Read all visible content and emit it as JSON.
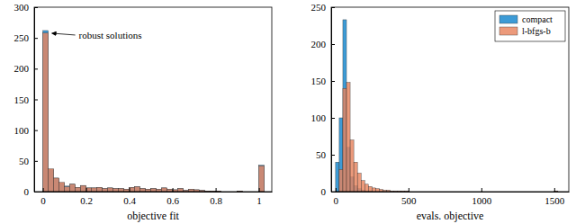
{
  "chart_data": [
    {
      "type": "histogram",
      "x_label": "objective fit",
      "annotation": "robust solutions",
      "bins": [
        0,
        0.025,
        0.05,
        0.075,
        0.1,
        0.125,
        0.15,
        0.175,
        0.2,
        0.225,
        0.25,
        0.275,
        0.3,
        0.325,
        0.35,
        0.375,
        0.4,
        0.425,
        0.45,
        0.475,
        0.5,
        0.525,
        0.55,
        0.575,
        0.6,
        0.625,
        0.65,
        0.675,
        0.7,
        0.725,
        0.75,
        0.775,
        0.8,
        0.825,
        0.85,
        0.875,
        0.9,
        0.925,
        0.95,
        0.975,
        1,
        1.025
      ],
      "series": [
        {
          "color": "#3d9bd6",
          "values": [
            262,
            36,
            22,
            14,
            9,
            12,
            7,
            10,
            6,
            6,
            7,
            5,
            6,
            5,
            5,
            4,
            7,
            8,
            5,
            4,
            5,
            4,
            6,
            4,
            3,
            5,
            2,
            4,
            3,
            2,
            1,
            1,
            1,
            0,
            0,
            0,
            1,
            0,
            0,
            0,
            43
          ]
        },
        {
          "color": "#e8845e",
          "values": [
            258,
            37,
            22,
            15,
            8,
            12,
            7,
            10,
            6,
            6,
            7,
            5,
            6,
            5,
            5,
            4,
            7,
            8,
            5,
            4,
            5,
            4,
            6,
            4,
            3,
            5,
            2,
            4,
            3,
            2,
            1,
            1,
            1,
            0,
            0,
            0,
            1,
            0,
            0,
            0,
            42
          ]
        }
      ],
      "xlim": [
        -0.04,
        1.06
      ],
      "xticks": [
        0,
        0.2,
        0.4,
        0.6,
        0.8,
        1
      ],
      "ylim": [
        0,
        300
      ],
      "yticks": [
        0,
        50,
        100,
        150,
        200,
        250,
        300
      ]
    },
    {
      "type": "histogram",
      "x_label": "evals. objective",
      "legend": "upper right",
      "bins": [
        0,
        25,
        50,
        75,
        100,
        125,
        150,
        175,
        200,
        225,
        250,
        275,
        300,
        325,
        350,
        375,
        400,
        425,
        450,
        475,
        500,
        525,
        550,
        575,
        600,
        625,
        650,
        675,
        700,
        725,
        750,
        775,
        800,
        825,
        850,
        875,
        900,
        925,
        950,
        975,
        1000,
        1025,
        1050,
        1075,
        1100,
        1125,
        1150,
        1175,
        1200,
        1225,
        1250,
        1275,
        1300,
        1325,
        1350,
        1375,
        1400,
        1425,
        1450,
        1475,
        1500,
        1525,
        1550,
        1575,
        1600
      ],
      "series": [
        {
          "name": "compact",
          "color": "#3d9bd6",
          "values": [
            40,
            100,
            233,
            60,
            20,
            8,
            4,
            2,
            1,
            1,
            0,
            0,
            0,
            0,
            0,
            0,
            0,
            0,
            0,
            0,
            0,
            0,
            0,
            0,
            0,
            0,
            0,
            0,
            0,
            0,
            0,
            0,
            0,
            0,
            0,
            0,
            0,
            0,
            0,
            0,
            0,
            0,
            0,
            0,
            0,
            0,
            0,
            0,
            0,
            0,
            0,
            0,
            0,
            0,
            0,
            0,
            0,
            0,
            0,
            0,
            0,
            0,
            0,
            0
          ]
        },
        {
          "name": "l-bfgs-b",
          "color": "#e8845e",
          "values": [
            0,
            30,
            140,
            148,
            70,
            40,
            25,
            15,
            10,
            7,
            5,
            4,
            3,
            2,
            2,
            1,
            1,
            1,
            1,
            1,
            0,
            0,
            0,
            0,
            0,
            0,
            0,
            0,
            0,
            0,
            0,
            0,
            0,
            0,
            0,
            0,
            0,
            0,
            0,
            0,
            0,
            0,
            0,
            0,
            0,
            0,
            0,
            0,
            0,
            0,
            0,
            0,
            0,
            0,
            0,
            0,
            0,
            0,
            0,
            0,
            1,
            0,
            0,
            0
          ]
        }
      ],
      "xlim": [
        -30,
        1600
      ],
      "xticks": [
        0,
        500,
        1000,
        1500
      ],
      "ylim": [
        0,
        250
      ],
      "yticks": [
        0,
        50,
        100,
        150,
        200,
        250
      ]
    }
  ]
}
